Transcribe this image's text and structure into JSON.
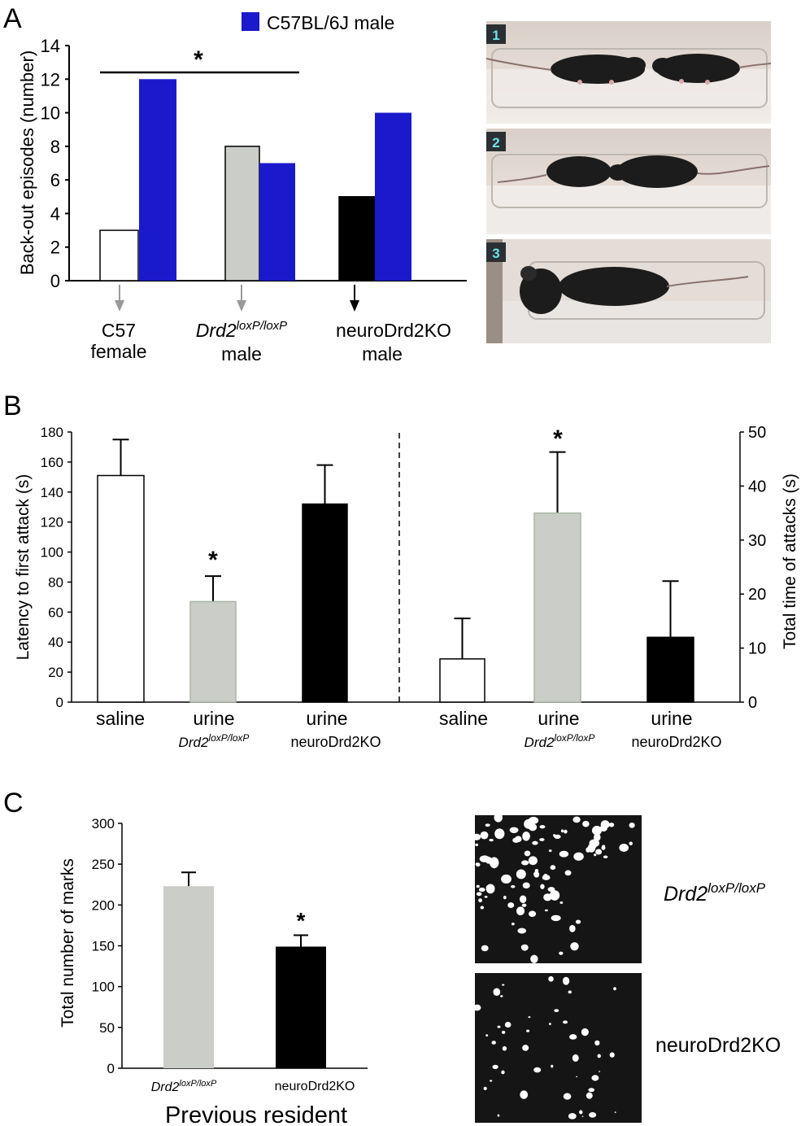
{
  "panels": {
    "a": {
      "label": "A",
      "legend": "C57BL/6J male",
      "colors": {
        "c57_female": "#ffffff",
        "c57bl_male": "#1a1acc",
        "drd2": "#cbcdc9",
        "neurokO": "#000000"
      },
      "photo_numbers": [
        "1",
        "2",
        "3"
      ],
      "groups": [
        {
          "line1": "C57",
          "line2": "female",
          "arrow_color": "#999999"
        },
        {
          "line1_main": "Drd2",
          "line1_sup": "loxP/loxP",
          "line2": "male",
          "arrow_color": "#999999"
        },
        {
          "line1": "neuroDrd2KO",
          "line2": "male",
          "arrow_color": "#000000"
        }
      ],
      "sig": "*"
    },
    "b": {
      "label": "B",
      "left_labels": [
        {
          "line1": "saline",
          "line2": ""
        },
        {
          "line1": "urine",
          "line2_main": "Drd2",
          "line2_sup": "loxP/loxP"
        },
        {
          "line1": "urine",
          "line2": "neuroDrd2KO"
        }
      ],
      "right_labels": [
        {
          "line1": "saline",
          "line2": ""
        },
        {
          "line1": "urine",
          "line2_main": "Drd2",
          "line2_sup": "loxP/loxP"
        },
        {
          "line1": "urine",
          "line2": "neuroDrd2KO"
        }
      ],
      "sig_left": "*",
      "sig_right": "*"
    },
    "c": {
      "label": "C",
      "xlabel": "Previous resident",
      "cat1_main": "Drd2",
      "cat1_sup": "loxP/loxP",
      "cat2": "neuroDrd2KO",
      "img1_main": "Drd2",
      "img1_sup": "loxP/loxP",
      "img2": "neuroDrd2KO",
      "sig": "*"
    }
  },
  "chart_data": [
    {
      "type": "bar",
      "panel": "A",
      "ylabel": "Back-out episodes (number)",
      "ylim": [
        0,
        14
      ],
      "yticks": [
        0,
        2,
        4,
        6,
        8,
        10,
        12,
        14
      ],
      "categories": [
        "C57 female",
        "Drd2loxP/loxP male",
        "neuroDrd2KO male"
      ],
      "series": [
        {
          "values": [
            3,
            8,
            5
          ]
        },
        {
          "name": "C57BL/6J male",
          "values": [
            12,
            7,
            10
          ]
        }
      ],
      "annotations": [
        "*"
      ]
    },
    {
      "type": "bar",
      "panel": "B-left",
      "ylabel": "Latency to first attack (s)",
      "ylim": [
        0,
        180
      ],
      "yticks": [
        0,
        20,
        40,
        60,
        80,
        100,
        120,
        140,
        160,
        180
      ],
      "categories": [
        "saline",
        "urine Drd2loxP/loxP",
        "urine neuroDrd2KO"
      ],
      "values": [
        151,
        67,
        132
      ],
      "errors": [
        24,
        17,
        26
      ],
      "annotations": [
        "*"
      ]
    },
    {
      "type": "bar",
      "panel": "B-right",
      "ylabel": "Total time of attacks (s)",
      "ylim": [
        0,
        50
      ],
      "yticks": [
        0,
        10,
        20,
        30,
        40,
        50
      ],
      "categories": [
        "saline",
        "urine Drd2loxP/loxP",
        "urine neuroDrd2KO"
      ],
      "values": [
        8,
        35,
        12
      ],
      "errors": [
        7.5,
        11.3,
        10.4
      ],
      "annotations": [
        "*"
      ]
    },
    {
      "type": "bar",
      "panel": "C",
      "ylabel": "Total number of marks",
      "xlabel": "Previous resident",
      "ylim": [
        0,
        300
      ],
      "yticks": [
        0,
        50,
        100,
        150,
        200,
        250,
        300
      ],
      "categories": [
        "Drd2loxP/loxP",
        "neuroDrd2KO"
      ],
      "values": [
        223,
        149
      ],
      "errors": [
        17,
        14
      ],
      "annotations": [
        "*"
      ]
    }
  ]
}
